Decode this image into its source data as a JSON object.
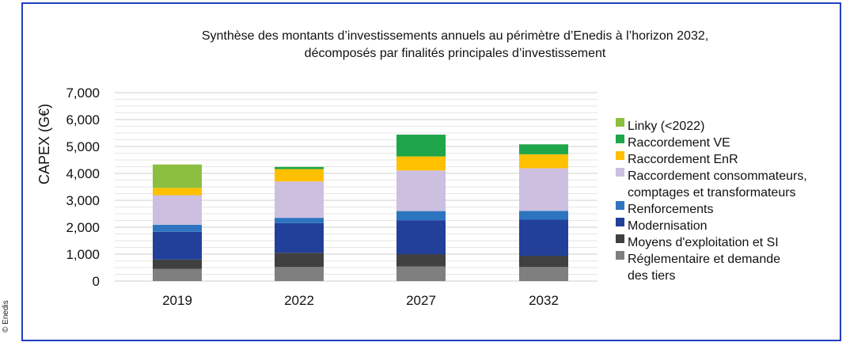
{
  "credit": "© Enedis",
  "chart_data": {
    "type": "bar",
    "stacked": true,
    "title_lines": [
      "Synthèse des montants d’investissements annuels au périmètre d’Enedis à l’horizon 2032,",
      "décomposés par finalités principales d’investissement"
    ],
    "ylabel": "CAPEX (G€)",
    "xlabel": "",
    "ylim": [
      0,
      7000
    ],
    "yticks": [
      {
        "value": 0,
        "label": "0"
      },
      {
        "value": 1000,
        "label": "1,000"
      },
      {
        "value": 2000,
        "label": "2,000"
      },
      {
        "value": 3000,
        "label": "3,000"
      },
      {
        "value": 4000,
        "label": "4,000"
      },
      {
        "value": 5000,
        "label": "5,000"
      },
      {
        "value": 6000,
        "label": "6,000"
      },
      {
        "value": 7000,
        "label": "7,000"
      }
    ],
    "grid": true,
    "legend_position": "right",
    "categories": [
      "2019",
      "2022",
      "2027",
      "2032"
    ],
    "series": [
      {
        "name": "Réglementaire et demande des tiers",
        "legend_lines": [
          "Réglementaire et demande",
          "des tiers"
        ],
        "color": "#7f7f7f",
        "values": [
          450,
          520,
          540,
          520
        ]
      },
      {
        "name": "Moyens d'exploitation et SI",
        "legend_lines": [
          "Moyens d'exploitation et SI"
        ],
        "color": "#404040",
        "values": [
          350,
          530,
          460,
          420
        ]
      },
      {
        "name": "Modernisation",
        "legend_lines": [
          "Modernisation"
        ],
        "color": "#22409a",
        "values": [
          1030,
          1100,
          1260,
          1340
        ]
      },
      {
        "name": "Renforcements",
        "legend_lines": [
          "Renforcements"
        ],
        "color": "#2e75c0",
        "values": [
          260,
          200,
          340,
          330
        ]
      },
      {
        "name": "Raccordement consommateurs, comptages et transformateurs",
        "legend_lines": [
          "Raccordement consommateurs,",
          "comptages et transformateurs"
        ],
        "color": "#ccbfe0",
        "values": [
          1100,
          1350,
          1510,
          1580
        ]
      },
      {
        "name": "Raccordement EnR",
        "legend_lines": [
          "Raccordement EnR"
        ],
        "color": "#ffc000",
        "values": [
          270,
          460,
          520,
          520
        ]
      },
      {
        "name": "Raccordement VE",
        "legend_lines": [
          "Raccordement VE"
        ],
        "color": "#1fa64a",
        "values": [
          0,
          80,
          810,
          370
        ]
      },
      {
        "name": "Linky (<2022)",
        "legend_lines": [
          "Linky (<2022)"
        ],
        "color": "#8cbf3f",
        "values": [
          870,
          0,
          0,
          0
        ]
      }
    ]
  }
}
